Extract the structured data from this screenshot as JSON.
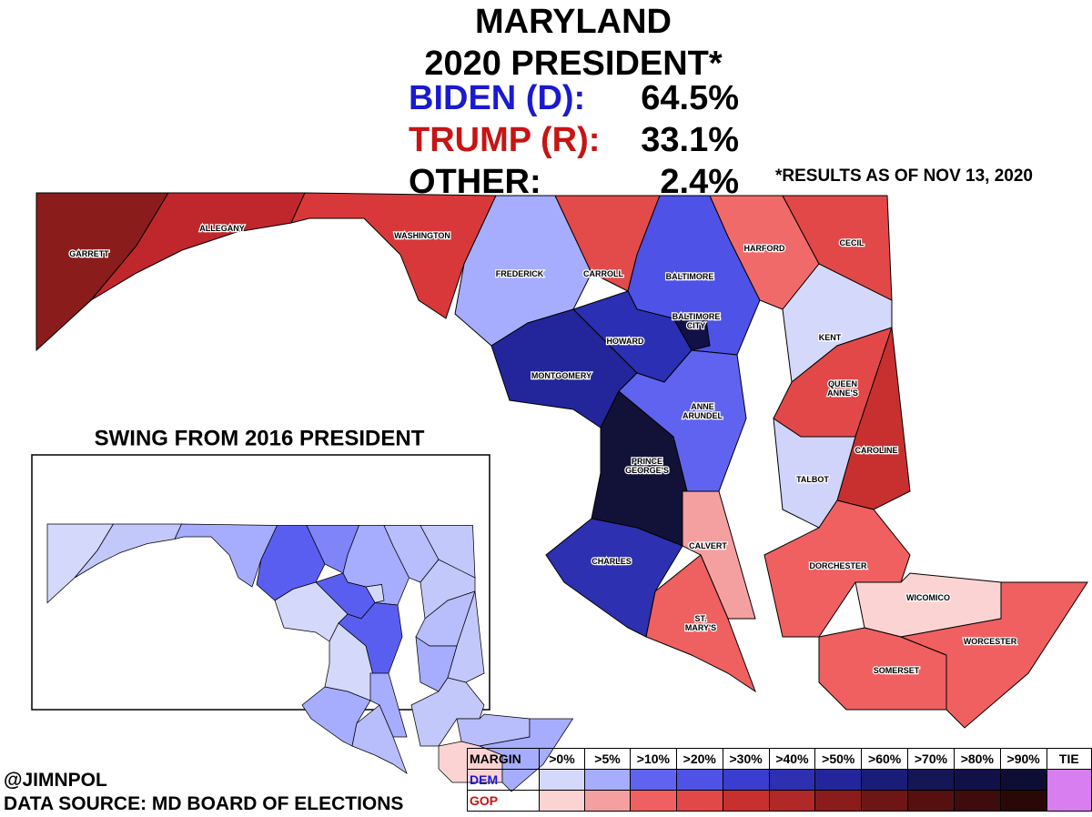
{
  "header": {
    "title": "MARYLAND",
    "subtitle": "2020 PRESIDENT*",
    "results": [
      {
        "label": "BIDEN (D):",
        "value": "64.5%",
        "color": "#1a1ad0"
      },
      {
        "label": "TRUMP (R):",
        "value": "33.1%",
        "color": "#c81414"
      },
      {
        "label": "OTHER:",
        "value": "2.4%",
        "color": "#000000"
      }
    ],
    "note": "*RESULTS AS OF NOV 13, 2020"
  },
  "counties": [
    {
      "label": [
        "GARRETT"
      ],
      "color": "#8b1c1c",
      "swing_color": "#d4d8fa"
    },
    {
      "label": [
        "ALLEGANY"
      ],
      "color": "#c0272d",
      "swing_color": "#c3c8fb"
    },
    {
      "label": [
        "WASHINGTON"
      ],
      "color": "#d9383a",
      "swing_color": "#a6adff"
    },
    {
      "label": [
        "FREDERICK"
      ],
      "color": "#a6adff",
      "swing_color": "#5a5ef0"
    },
    {
      "label": [
        "CARROLL"
      ],
      "color": "#e34a4a",
      "swing_color": "#7f84f8"
    },
    {
      "label": [
        "BALTIMORE"
      ],
      "color": "#4e52e6",
      "swing_color": "#a6adff"
    },
    {
      "label": [
        "HARFORD"
      ],
      "color": "#f06a6a",
      "swing_color": "#b8bdfc"
    },
    {
      "label": [
        "CECIL"
      ],
      "color": "#e34848",
      "swing_color": "#c3c8fb"
    },
    {
      "label": [
        "BALTIMORE",
        "CITY"
      ],
      "color": "#111148",
      "swing_color": "#d4d8fa"
    },
    {
      "label": [
        "HOWARD"
      ],
      "color": "#2b2fb4",
      "swing_color": "#5a5ef0"
    },
    {
      "label": [
        "MONTGOMERY"
      ],
      "color": "#23269a",
      "swing_color": "#d4d8fa"
    },
    {
      "label": [
        "ANNE",
        "ARUNDEL"
      ],
      "color": "#6063f0",
      "swing_color": "#5a5ef0"
    },
    {
      "label": [
        "PRINCE",
        "GEORGE'S"
      ],
      "color": "#121238",
      "swing_color": "#d4d8fa"
    },
    {
      "label": [
        "CHARLES"
      ],
      "color": "#2d30b0",
      "swing_color": "#a6adff"
    },
    {
      "label": [
        "CALVERT"
      ],
      "color": "#f5a0a0",
      "swing_color": "#a6adff"
    },
    {
      "label": [
        "ST.",
        "MARY'S"
      ],
      "color": "#ef6060",
      "swing_color": "#b8bdfc"
    },
    {
      "label": [
        "KENT"
      ],
      "color": "#d4d8fa",
      "swing_color": "#c3c8fb"
    },
    {
      "label": [
        "QUEEN",
        "ANNE'S"
      ],
      "color": "#e34848",
      "swing_color": "#b8bdfc"
    },
    {
      "label": [
        "CAROLINE"
      ],
      "color": "#c83030",
      "swing_color": "#c3c8fb"
    },
    {
      "label": [
        "TALBOT"
      ],
      "color": "#d0d4fa",
      "swing_color": "#a6adff"
    },
    {
      "label": [
        "DORCHESTER"
      ],
      "color": "#f06060",
      "swing_color": "#c3c8fb"
    },
    {
      "label": [
        "WICOMICO"
      ],
      "color": "#fbd3d3",
      "swing_color": "#b8bdfc"
    },
    {
      "label": [
        "SOMERSET"
      ],
      "color": "#f06060",
      "swing_color": "#fbd3d3"
    },
    {
      "label": [
        "WORCESTER"
      ],
      "color": "#f06060",
      "swing_color": "#a6adff"
    }
  ],
  "inset": {
    "title": "SWING FROM 2016 PRESIDENT"
  },
  "legend": {
    "header": [
      "MARGIN",
      ">0%",
      ">5%",
      ">10%",
      ">20%",
      ">30%",
      ">40%",
      ">50%",
      ">60%",
      ">70%",
      ">80%",
      ">90%",
      "TIE"
    ],
    "rows": [
      {
        "label": "DEM",
        "label_color": "#1a1ad0",
        "colors": [
          "#d4d8fa",
          "#a6adff",
          "#6063f0",
          "#4e52e6",
          "#3a3ed0",
          "#2d30b0",
          "#23269a",
          "#1a1d78",
          "#141656",
          "#111148",
          "#0e0e34"
        ]
      },
      {
        "label": "GOP",
        "label_color": "#c81414",
        "colors": [
          "#fbd3d3",
          "#f5a0a0",
          "#f06060",
          "#e34848",
          "#c83030",
          "#b02828",
          "#8b1c1c",
          "#6e1616",
          "#561010",
          "#3e0c0c",
          "#2a0808"
        ]
      }
    ],
    "tie_color": "#d87ef0"
  },
  "footer": {
    "credit": "@JIMNPOL",
    "source": "DATA SOURCE: MD BOARD OF ELECTIONS"
  }
}
